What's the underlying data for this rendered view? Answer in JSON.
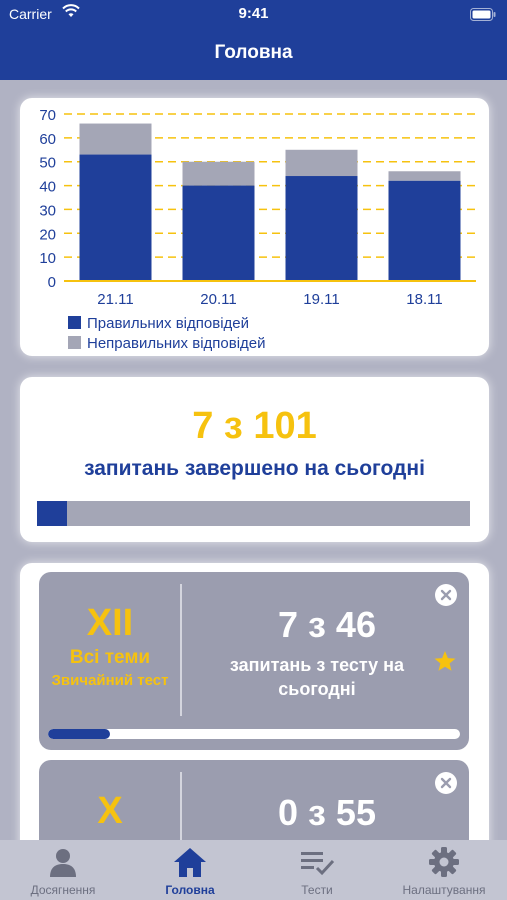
{
  "status_bar": {
    "carrier": "Carrier",
    "time": "9:41"
  },
  "nav": {
    "title": "Головна"
  },
  "chart_data": {
    "type": "bar",
    "stacked": true,
    "categories": [
      "21.11",
      "20.11",
      "19.11",
      "18.11"
    ],
    "series": [
      {
        "name": "Правильних відповідей",
        "values": [
          53,
          40,
          44,
          42
        ],
        "color": "#1f3f9a"
      },
      {
        "name": "Неправильних відповідей",
        "values": [
          13,
          10,
          11,
          4
        ],
        "color": "#a4a6b6"
      }
    ],
    "yticks": [
      "0",
      "10",
      "20",
      "30",
      "40",
      "50",
      "60",
      "70"
    ],
    "ylim": [
      0,
      70
    ],
    "grid": true,
    "grid_color": "#f6c20f",
    "legend_position": "bottom-left"
  },
  "daily": {
    "count_text": "7 з 101",
    "subtitle": "запитань завершено на сьогодні",
    "progress": 0.07
  },
  "tests": [
    {
      "roman": "XII",
      "theme": "Всі теми",
      "type": "Звичайний тест",
      "count_text": "7 з 46",
      "subtitle": "запитань з тесту на сьогодні",
      "progress": 0.15,
      "starred": true
    },
    {
      "roman": "X",
      "count_text": "0 з 55"
    }
  ],
  "tabs": [
    {
      "label": "Досягнення",
      "icon": "person-icon",
      "active": false
    },
    {
      "label": "Головна",
      "icon": "home-icon",
      "active": true
    },
    {
      "label": "Тести",
      "icon": "checklist-icon",
      "active": false
    },
    {
      "label": "Налаштування",
      "icon": "gear-icon",
      "active": false
    }
  ],
  "colors": {
    "primary": "#1f3f9a",
    "accent": "#f6c20f",
    "muted": "#a4a6b6",
    "tile": "#9b9daf",
    "background": "#b0b2c3"
  }
}
